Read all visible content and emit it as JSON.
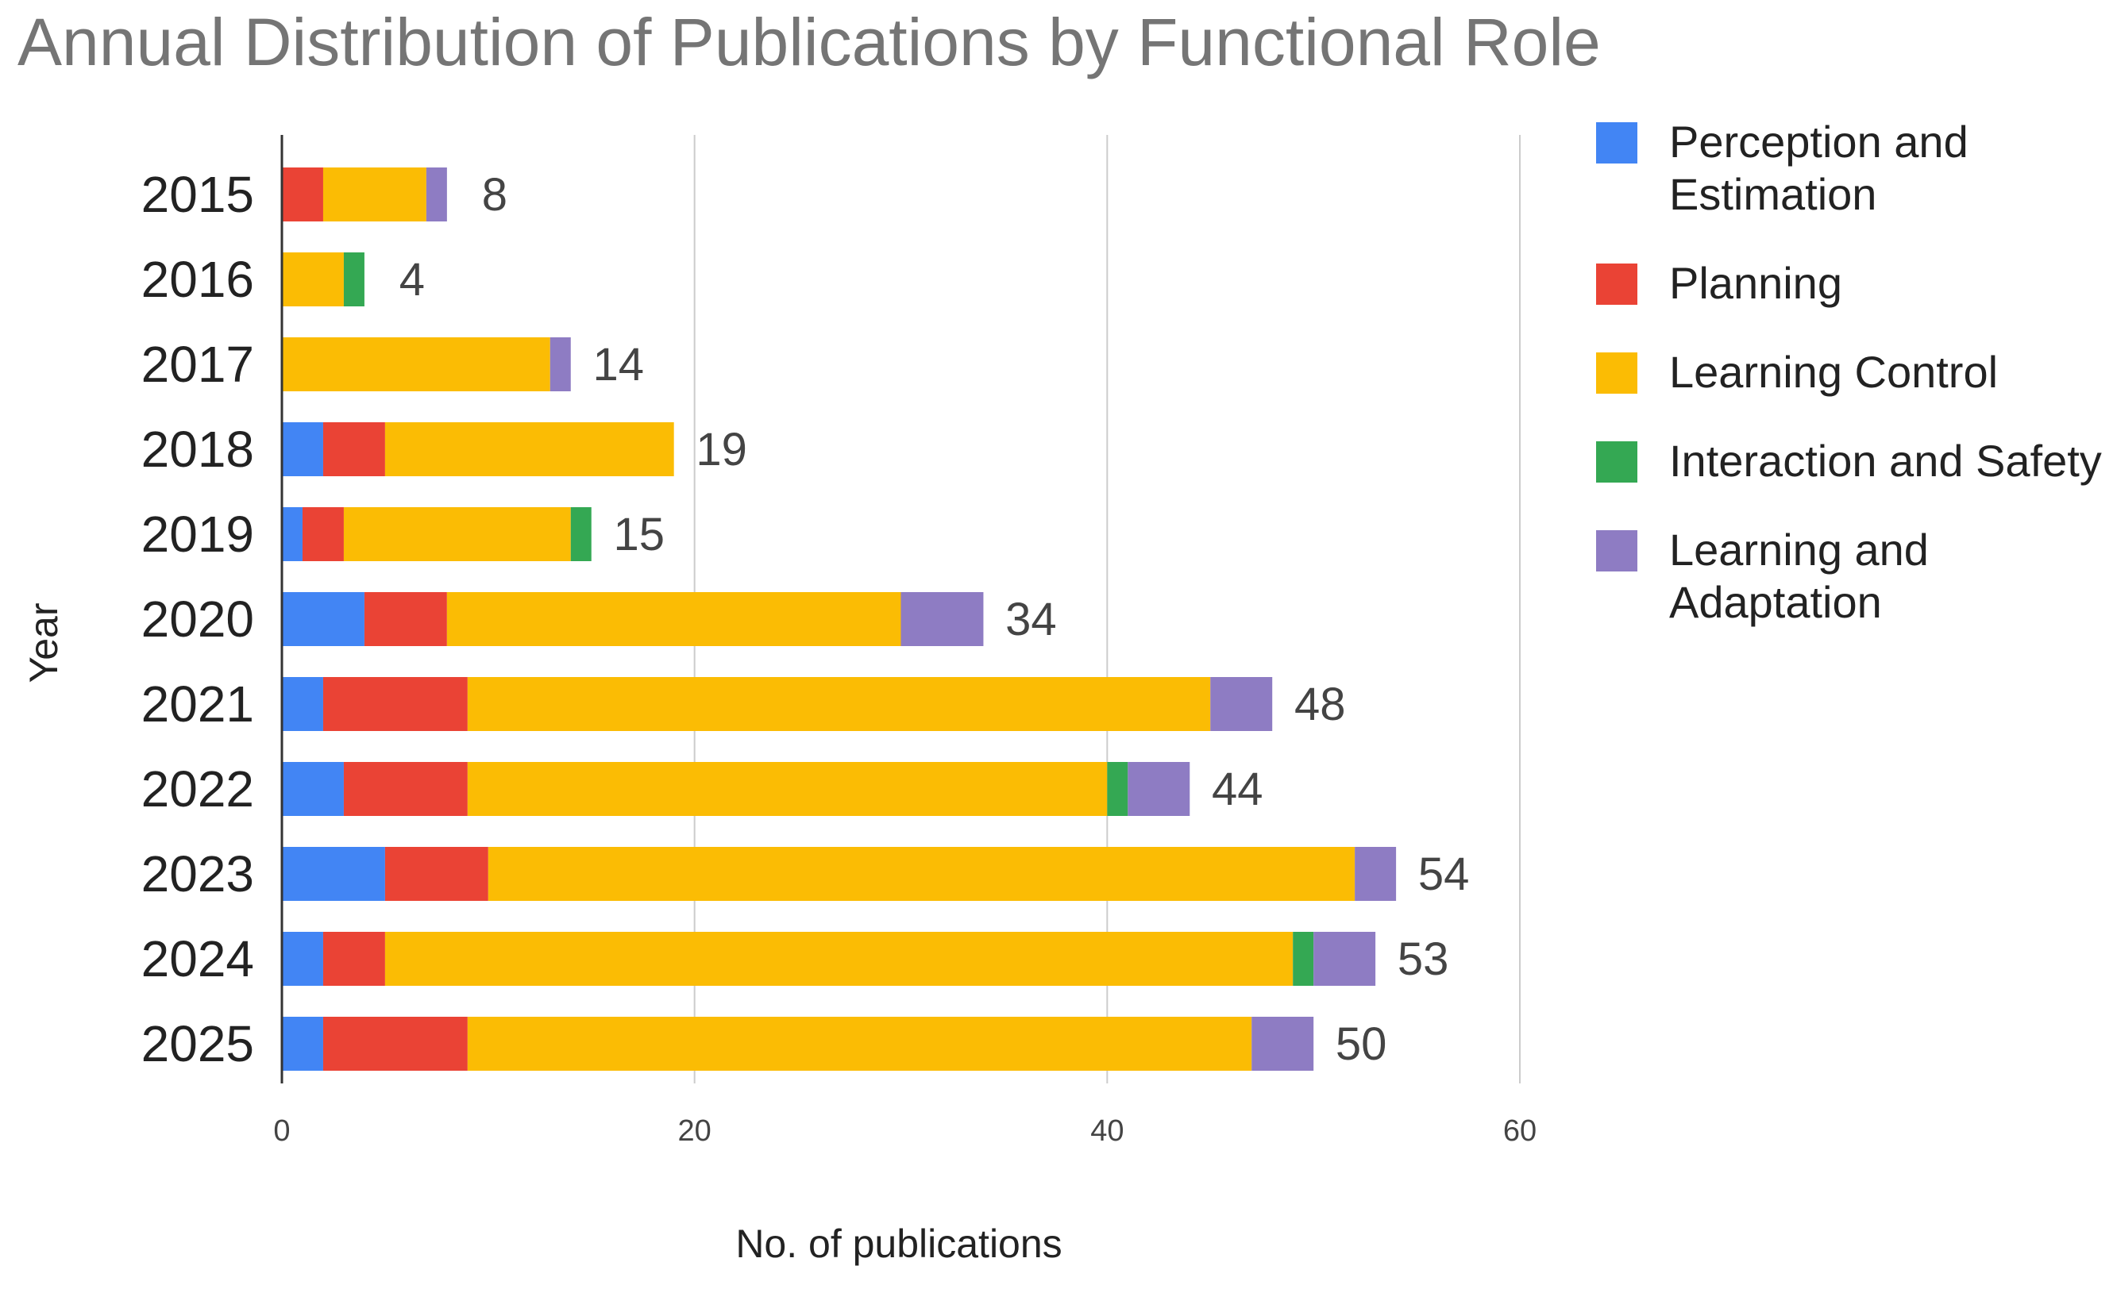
{
  "chart_data": {
    "type": "bar",
    "orientation": "horizontal",
    "stacked": true,
    "title": "Annual Distribution of Publications by Functional Role",
    "xlabel": "No. of publications",
    "ylabel": "Year",
    "xlim": [
      0,
      60
    ],
    "xticks": [
      "0",
      "20",
      "40",
      "60"
    ],
    "grid": "vertical",
    "legend_position": "right",
    "categories": [
      "2015",
      "2016",
      "2017",
      "2018",
      "2019",
      "2020",
      "2021",
      "2022",
      "2023",
      "2024",
      "2025"
    ],
    "totals": [
      "8",
      "4",
      "14",
      "19",
      "15",
      "34",
      "48",
      "44",
      "54",
      "53",
      "50"
    ],
    "series": [
      {
        "name": "Perception and Estimation",
        "legend_lines": [
          "Perception and",
          "Estimation"
        ],
        "color": "#4285F4",
        "values": [
          0,
          0,
          0,
          2,
          1,
          4,
          2,
          3,
          5,
          2,
          2
        ]
      },
      {
        "name": "Planning",
        "legend_lines": [
          "Planning"
        ],
        "color": "#EA4335",
        "values": [
          2,
          0,
          0,
          3,
          2,
          4,
          7,
          6,
          5,
          3,
          7
        ]
      },
      {
        "name": "Learning Control",
        "legend_lines": [
          "Learning Control"
        ],
        "color": "#FBBC04",
        "values": [
          5,
          3,
          13,
          14,
          11,
          22,
          36,
          31,
          42,
          44,
          38
        ]
      },
      {
        "name": "Interaction and Safety",
        "legend_lines": [
          "Interaction and Safety"
        ],
        "color": "#34A853",
        "values": [
          0,
          1,
          0,
          0,
          1,
          0,
          0,
          1,
          0,
          1,
          0
        ]
      },
      {
        "name": "Learning and Adaptation",
        "legend_lines": [
          "Learning and",
          "Adaptation"
        ],
        "color": "#8E7CC3",
        "values": [
          1,
          0,
          1,
          0,
          0,
          4,
          3,
          3,
          2,
          3,
          3
        ]
      }
    ]
  }
}
